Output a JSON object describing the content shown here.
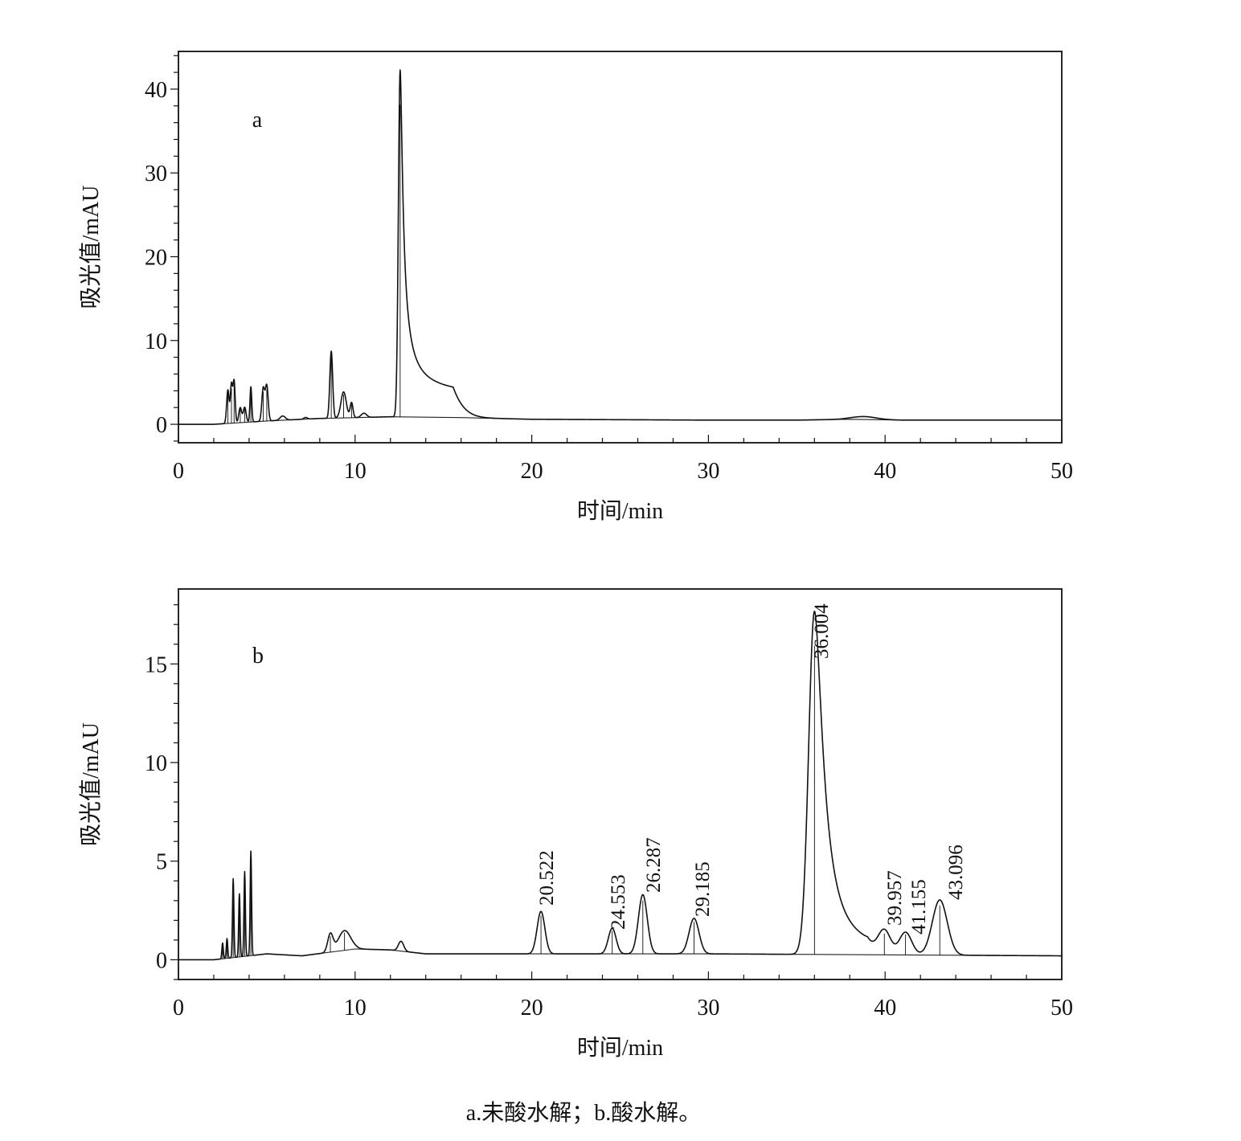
{
  "caption": "a.未酸水解；b.酸水解。",
  "chart_data": [
    {
      "type": "line",
      "panel_label": "a",
      "xlabel": "时间/min",
      "ylabel": "吸光值/mAU",
      "xlim": [
        0,
        50
      ],
      "ylim": [
        -2.2,
        44.5
      ],
      "x_ticks": [
        0,
        10,
        20,
        30,
        40,
        50
      ],
      "y_ticks": [
        0,
        10,
        20,
        30,
        40
      ],
      "baseline": [
        [
          0,
          0.0
        ],
        [
          2.0,
          0.0
        ],
        [
          5,
          0.4
        ],
        [
          8,
          0.7
        ],
        [
          12,
          0.9
        ],
        [
          16,
          0.8
        ],
        [
          20,
          0.6
        ],
        [
          30,
          0.5
        ],
        [
          35,
          0.5
        ],
        [
          38,
          0.6
        ],
        [
          41,
          0.5
        ],
        [
          50,
          0.5
        ]
      ],
      "peaks": [
        {
          "rt": 2.8,
          "height": 4.0,
          "width": 0.07
        },
        {
          "rt": 3.0,
          "height": 4.6,
          "width": 0.06
        },
        {
          "rt": 3.15,
          "height": 5.0,
          "width": 0.06
        },
        {
          "rt": 3.5,
          "height": 1.8,
          "width": 0.08
        },
        {
          "rt": 3.75,
          "height": 1.8,
          "width": 0.08
        },
        {
          "rt": 4.1,
          "height": 4.2,
          "width": 0.05
        },
        {
          "rt": 4.8,
          "height": 3.9,
          "width": 0.08
        },
        {
          "rt": 5.0,
          "height": 4.2,
          "width": 0.08
        },
        {
          "rt": 5.9,
          "height": 0.5,
          "width": 0.15
        },
        {
          "rt": 7.2,
          "height": 0.2,
          "width": 0.1
        },
        {
          "rt": 8.65,
          "height": 8.0,
          "width": 0.08
        },
        {
          "rt": 9.35,
          "height": 3.1,
          "width": 0.15
        },
        {
          "rt": 9.8,
          "height": 1.8,
          "width": 0.08
        },
        {
          "rt": 10.5,
          "height": 0.5,
          "width": 0.15
        },
        {
          "rt": 12.55,
          "height": 41.4,
          "width": 0.1,
          "tail": 0.7
        },
        {
          "rt": 38.8,
          "height": 0.35,
          "width": 0.7
        }
      ]
    },
    {
      "type": "line",
      "panel_label": "b",
      "xlabel": "时间/min",
      "ylabel": "吸光值/mAU",
      "xlim": [
        0,
        50
      ],
      "ylim": [
        -1.0,
        18.8
      ],
      "x_ticks": [
        0,
        10,
        20,
        30,
        40,
        50
      ],
      "y_ticks": [
        0,
        5,
        10,
        15
      ],
      "baseline": [
        [
          0,
          0.0
        ],
        [
          2.0,
          0.0
        ],
        [
          5,
          0.3
        ],
        [
          7,
          0.2
        ],
        [
          10,
          0.55
        ],
        [
          12,
          0.5
        ],
        [
          14,
          0.3
        ],
        [
          20,
          0.3
        ],
        [
          30,
          0.3
        ],
        [
          50,
          0.2
        ]
      ],
      "peaks": [
        {
          "rt": 2.5,
          "height": 0.8,
          "width": 0.04
        },
        {
          "rt": 2.75,
          "height": 1.0,
          "width": 0.04
        },
        {
          "rt": 3.1,
          "height": 4.0,
          "width": 0.04
        },
        {
          "rt": 3.45,
          "height": 3.2,
          "width": 0.04
        },
        {
          "rt": 3.75,
          "height": 4.3,
          "width": 0.04
        },
        {
          "rt": 4.1,
          "height": 5.3,
          "width": 0.04
        },
        {
          "rt": 8.6,
          "height": 0.9,
          "width": 0.15
        },
        {
          "rt": 9.4,
          "height": 1.0,
          "width": 0.35
        },
        {
          "rt": 12.6,
          "height": 0.5,
          "width": 0.15
        },
        {
          "rt": 20.522,
          "height": 2.15,
          "width": 0.22
        },
        {
          "rt": 24.553,
          "height": 1.3,
          "width": 0.22
        },
        {
          "rt": 26.287,
          "height": 3.0,
          "width": 0.25
        },
        {
          "rt": 29.185,
          "height": 1.8,
          "width": 0.28
        },
        {
          "rt": 36.004,
          "height": 17.4,
          "width": 0.33,
          "tail": 0.5
        },
        {
          "rt": 39.957,
          "height": 1.2,
          "width": 0.35
        },
        {
          "rt": 41.155,
          "height": 1.15,
          "width": 0.35
        },
        {
          "rt": 43.096,
          "height": 2.8,
          "width": 0.42
        }
      ],
      "peak_labels": [
        "20.522",
        "24.553",
        "26.287",
        "29.185",
        "36.004",
        "39.957",
        "41.155",
        "43.096"
      ]
    }
  ]
}
